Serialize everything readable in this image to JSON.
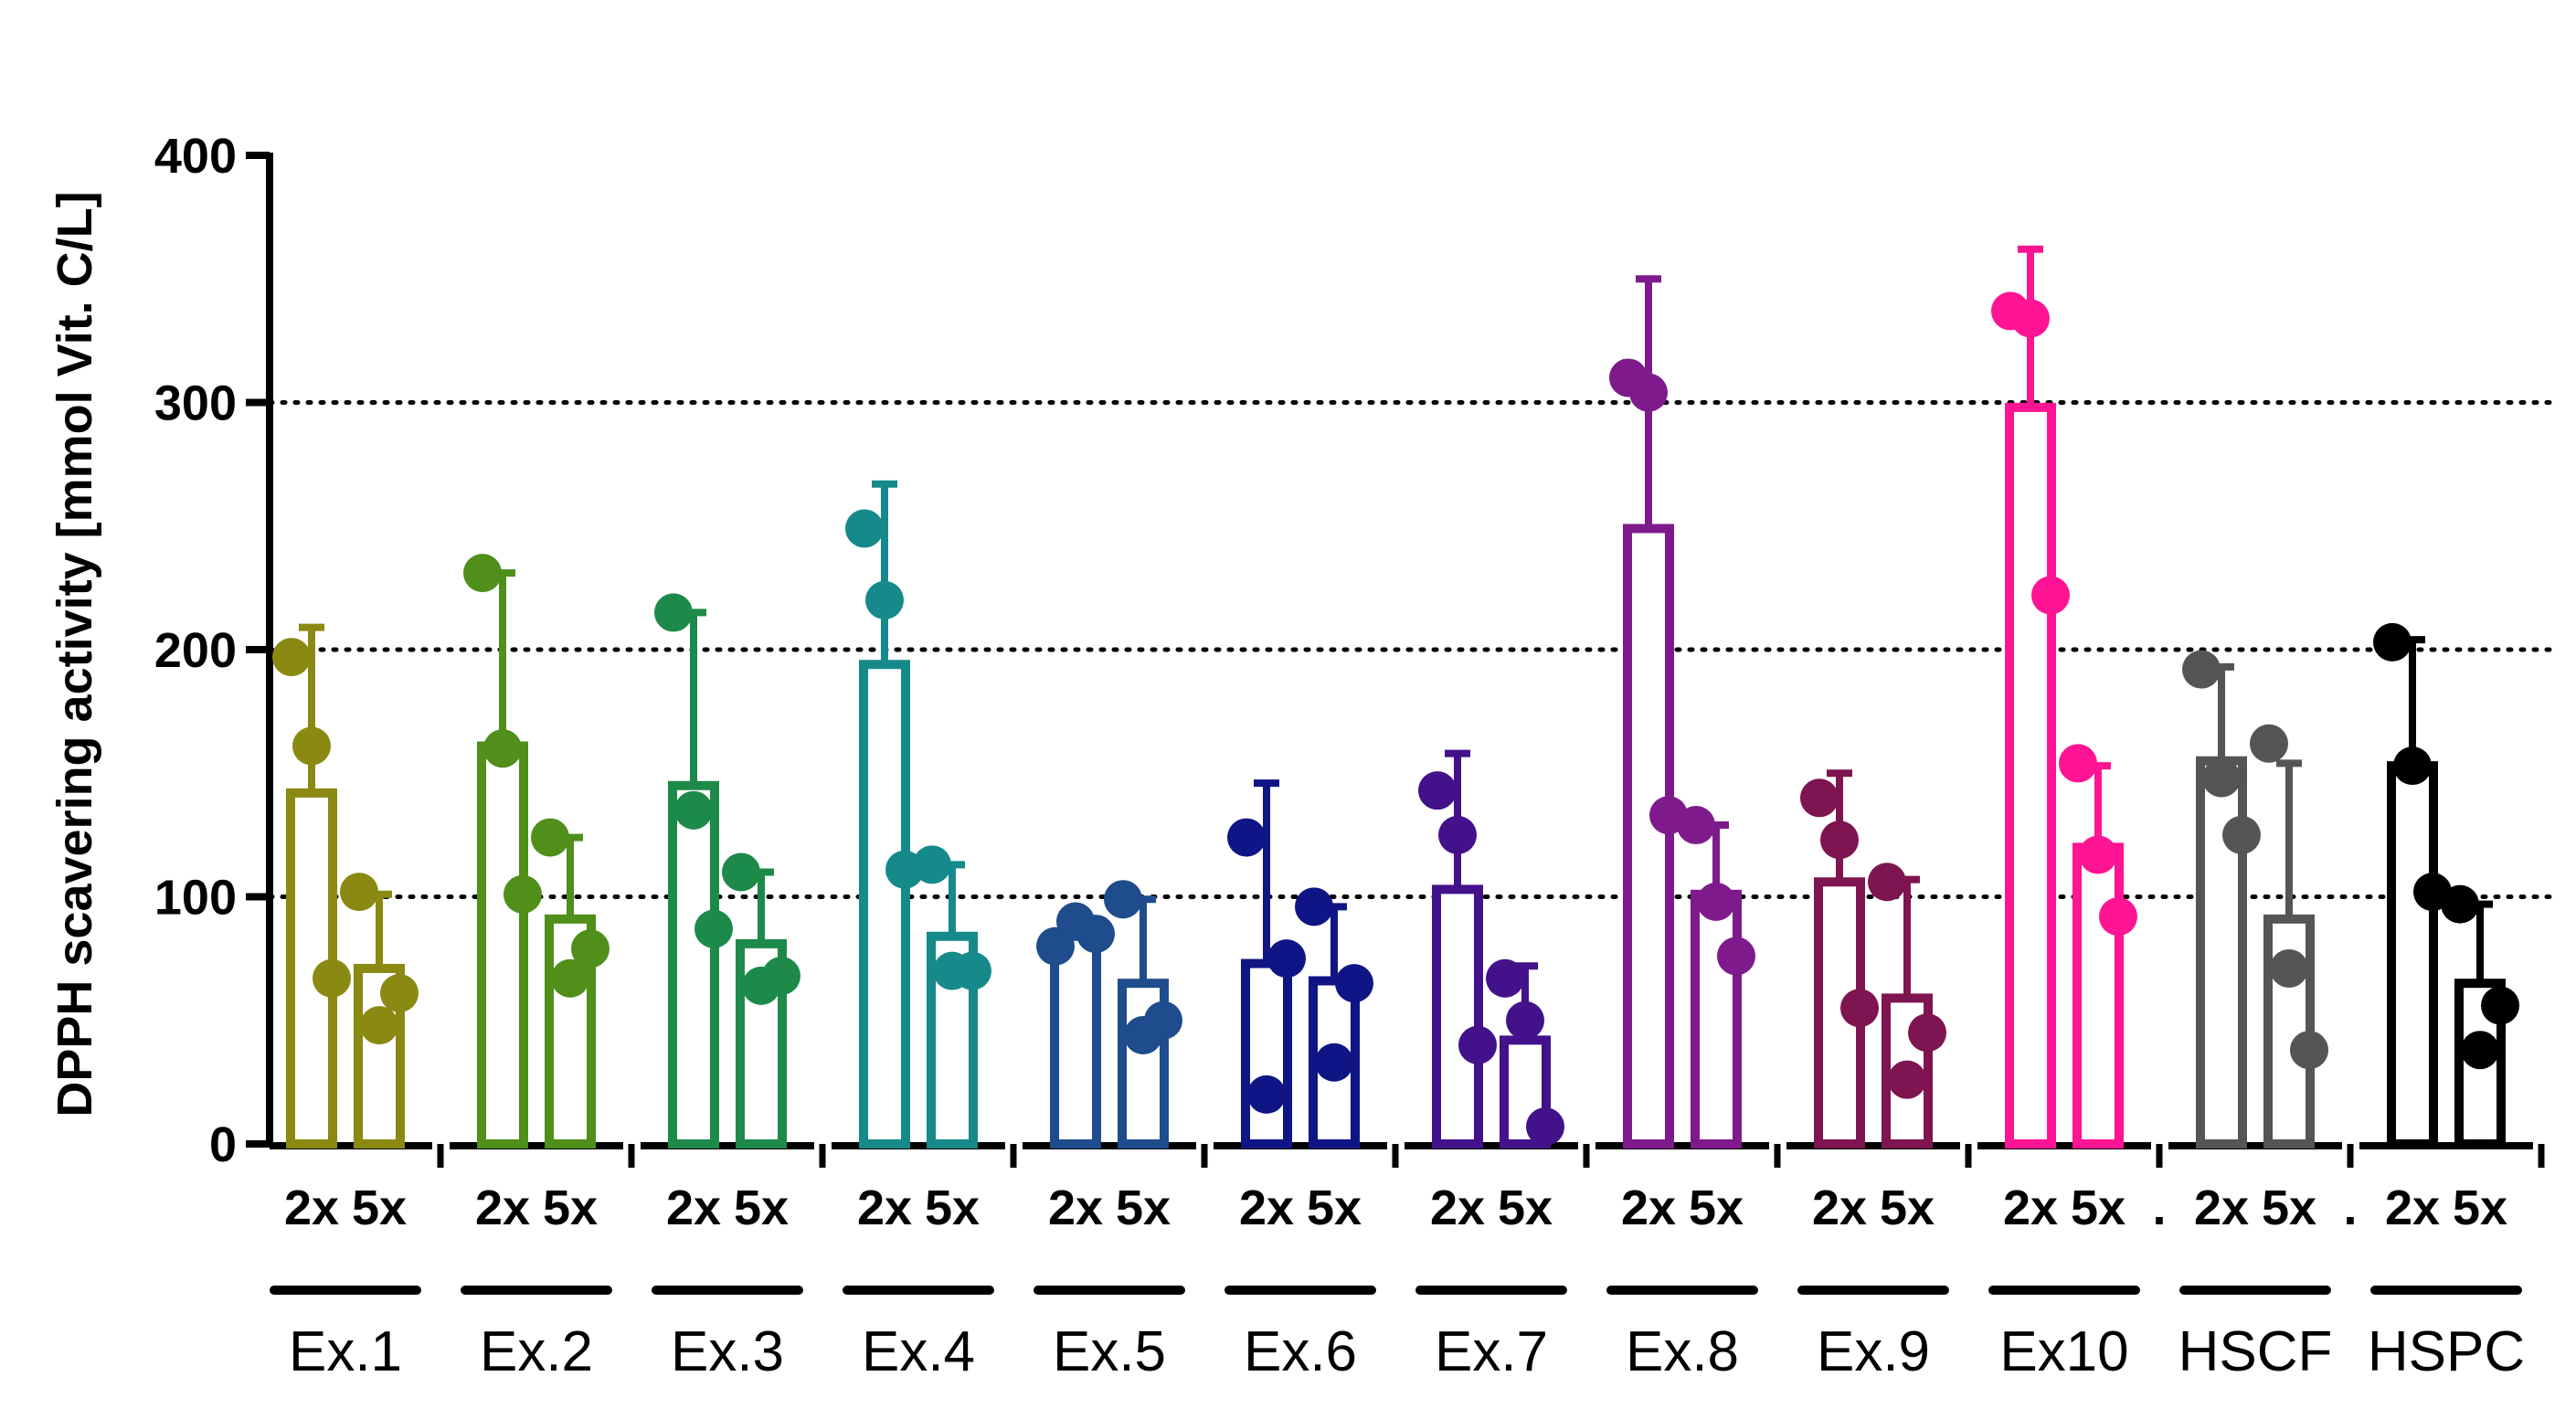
{
  "chart_data": {
    "type": "bar",
    "title": "",
    "xlabel": "",
    "ylabel": "DPPH scavering activity [mmol Vit. C/L]",
    "ylim": [
      0,
      400
    ],
    "yticks": [
      0,
      100,
      200,
      300,
      400
    ],
    "gridlines": {
      "style": "dotted",
      "at": [
        100,
        200,
        300
      ]
    },
    "sub_categories": [
      "2x",
      "5x"
    ],
    "groups": [
      {
        "label": "Ex.1",
        "color": "#8a8a12",
        "bars": [
          {
            "sub": "2x",
            "mean": 142,
            "sd": 67,
            "points": [
              197,
              161,
              67
            ]
          },
          {
            "sub": "5x",
            "mean": 71,
            "sd": 30,
            "points": [
              102,
              48,
              61
            ]
          }
        ]
      },
      {
        "label": "Ex.2",
        "color": "#4f8f1a",
        "bars": [
          {
            "sub": "2x",
            "mean": 161,
            "sd": 70,
            "points": [
              231,
              160,
              101
            ]
          },
          {
            "sub": "5x",
            "mean": 91,
            "sd": 33,
            "points": [
              124,
              67,
              79
            ]
          }
        ]
      },
      {
        "label": "Ex.3",
        "color": "#1d8a4a",
        "bars": [
          {
            "sub": "2x",
            "mean": 145,
            "sd": 70,
            "points": [
              215,
              135,
              87
            ]
          },
          {
            "sub": "5x",
            "mean": 81,
            "sd": 29,
            "points": [
              110,
              64,
              68
            ]
          }
        ]
      },
      {
        "label": "Ex.4",
        "color": "#168a8a",
        "bars": [
          {
            "sub": "2x",
            "mean": 194,
            "sd": 73,
            "points": [
              249,
              220,
              111
            ]
          },
          {
            "sub": "5x",
            "mean": 84,
            "sd": 29,
            "points": [
              113,
              70,
              70
            ]
          }
        ]
      },
      {
        "label": "Ex.5",
        "color": "#1e4c8c",
        "bars": [
          {
            "sub": "2x",
            "mean": 84,
            "sd": 9,
            "points": [
              80,
              90,
              85
            ]
          },
          {
            "sub": "5x",
            "mean": 65,
            "sd": 34,
            "points": [
              99,
              44,
              50
            ]
          }
        ]
      },
      {
        "label": "Ex.6",
        "color": "#101585",
        "bars": [
          {
            "sub": "2x",
            "mean": 73,
            "sd": 73,
            "points": [
              124,
              20,
              75
            ]
          },
          {
            "sub": "5x",
            "mean": 66,
            "sd": 30,
            "points": [
              96,
              33,
              65
            ]
          }
        ]
      },
      {
        "label": "Ex.7",
        "color": "#43118a",
        "bars": [
          {
            "sub": "2x",
            "mean": 103,
            "sd": 55,
            "points": [
              143,
              125,
              40
            ]
          },
          {
            "sub": "5x",
            "mean": 42,
            "sd": 30,
            "points": [
              67,
              50,
              7
            ]
          }
        ]
      },
      {
        "label": "Ex.8",
        "color": "#7f1a8c",
        "bars": [
          {
            "sub": "2x",
            "mean": 249,
            "sd": 101,
            "points": [
              310,
              304,
              133
            ]
          },
          {
            "sub": "5x",
            "mean": 101,
            "sd": 28,
            "points": [
              129,
              98,
              76
            ]
          }
        ]
      },
      {
        "label": "Ex.9",
        "color": "#7e1450",
        "bars": [
          {
            "sub": "2x",
            "mean": 106,
            "sd": 44,
            "points": [
              140,
              123,
              55
            ]
          },
          {
            "sub": "5x",
            "mean": 59,
            "sd": 48,
            "points": [
              106,
              26,
              45
            ]
          }
        ]
      },
      {
        "label": "Ex10",
        "color": "#ff1493",
        "bars": [
          {
            "sub": "2x",
            "mean": 298,
            "sd": 64,
            "points": [
              337,
              334,
              222
            ]
          },
          {
            "sub": "5x",
            "mean": 120,
            "sd": 33,
            "points": [
              154,
              117,
              92
            ]
          }
        ]
      },
      {
        "label": "HSCF",
        "color": "#555555",
        "bars": [
          {
            "sub": "2x",
            "mean": 155,
            "sd": 38,
            "points": [
              192,
              148,
              125
            ]
          },
          {
            "sub": "5x",
            "mean": 91,
            "sd": 63,
            "points": [
              162,
              71,
              38
            ]
          }
        ]
      },
      {
        "label": "HSPC",
        "color": "#000000",
        "bars": [
          {
            "sub": "2x",
            "mean": 153,
            "sd": 51,
            "points": [
              203,
              153,
              102
            ]
          },
          {
            "sub": "5x",
            "mean": 65,
            "sd": 32,
            "points": [
              97,
              38,
              56
            ]
          }
        ]
      }
    ]
  },
  "separators": [
    ".",
    "."
  ]
}
